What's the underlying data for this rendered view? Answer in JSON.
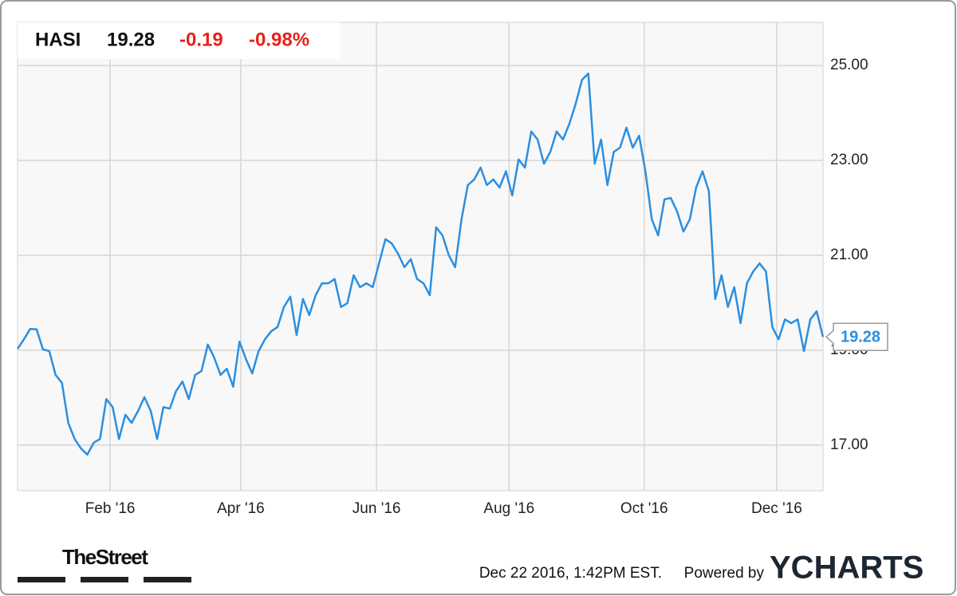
{
  "chart_data": {
    "type": "line",
    "ticker": "HASI",
    "price": "19.28",
    "change": "-0.19",
    "change_pct": "-0.98%",
    "color": "#2b8fe0",
    "values": [
      19.03,
      19.23,
      19.45,
      19.44,
      19.02,
      18.98,
      18.48,
      18.31,
      17.47,
      17.13,
      16.93,
      16.8,
      17.05,
      17.13,
      17.97,
      17.8,
      17.13,
      17.64,
      17.47,
      17.72,
      18.01,
      17.72,
      17.13,
      17.8,
      17.77,
      18.14,
      18.34,
      17.97,
      18.48,
      18.56,
      19.12,
      18.85,
      18.48,
      18.61,
      18.23,
      19.18,
      18.82,
      18.51,
      18.98,
      19.23,
      19.4,
      19.49,
      19.91,
      20.13,
      19.32,
      20.08,
      19.74,
      20.16,
      20.41,
      20.41,
      20.5,
      19.91,
      19.99,
      20.58,
      20.33,
      20.41,
      20.33,
      20.83,
      21.34,
      21.25,
      21.03,
      20.75,
      20.92,
      20.5,
      20.41,
      20.16,
      21.59,
      21.42,
      21.0,
      20.75,
      21.76,
      22.48,
      22.6,
      22.85,
      22.48,
      22.6,
      22.43,
      22.77,
      22.26,
      23.02,
      22.85,
      23.61,
      23.44,
      22.93,
      23.18,
      23.61,
      23.44,
      23.77,
      24.19,
      24.7,
      24.83,
      22.93,
      23.44,
      22.48,
      23.18,
      23.27,
      23.69,
      23.27,
      23.52,
      22.77,
      21.76,
      21.42,
      22.18,
      22.21,
      21.92,
      21.5,
      21.76,
      22.43,
      22.77,
      22.35,
      20.08,
      20.58,
      19.91,
      20.33,
      19.57,
      20.41,
      20.66,
      20.83,
      20.66,
      19.49,
      19.23,
      19.65,
      19.57,
      19.65,
      18.98,
      19.65,
      19.82,
      19.28
    ],
    "xlim": [
      0,
      127
    ],
    "xticks": [
      {
        "value": 14.6,
        "label": "Feb '16"
      },
      {
        "value": 35.2,
        "label": "Apr '16"
      },
      {
        "value": 56.6,
        "label": "Jun '16"
      },
      {
        "value": 77.5,
        "label": "Aug '16"
      },
      {
        "value": 98.8,
        "label": "Oct '16"
      },
      {
        "value": 119.7,
        "label": "Dec '16"
      }
    ],
    "ylim": [
      16.04,
      25.91
    ],
    "yticks": [
      {
        "value": 17,
        "label": "17.00"
      },
      {
        "value": 19,
        "label": "19.00"
      },
      {
        "value": 21,
        "label": "21.00"
      },
      {
        "value": 23,
        "label": "23.00"
      },
      {
        "value": 25,
        "label": "25.00"
      }
    ],
    "grid": true,
    "timestamp": "Dec 22 2016, 1:42PM EST.",
    "powered_by": "Powered by",
    "brand": "YCHARTS",
    "logo": "TheStreet"
  }
}
